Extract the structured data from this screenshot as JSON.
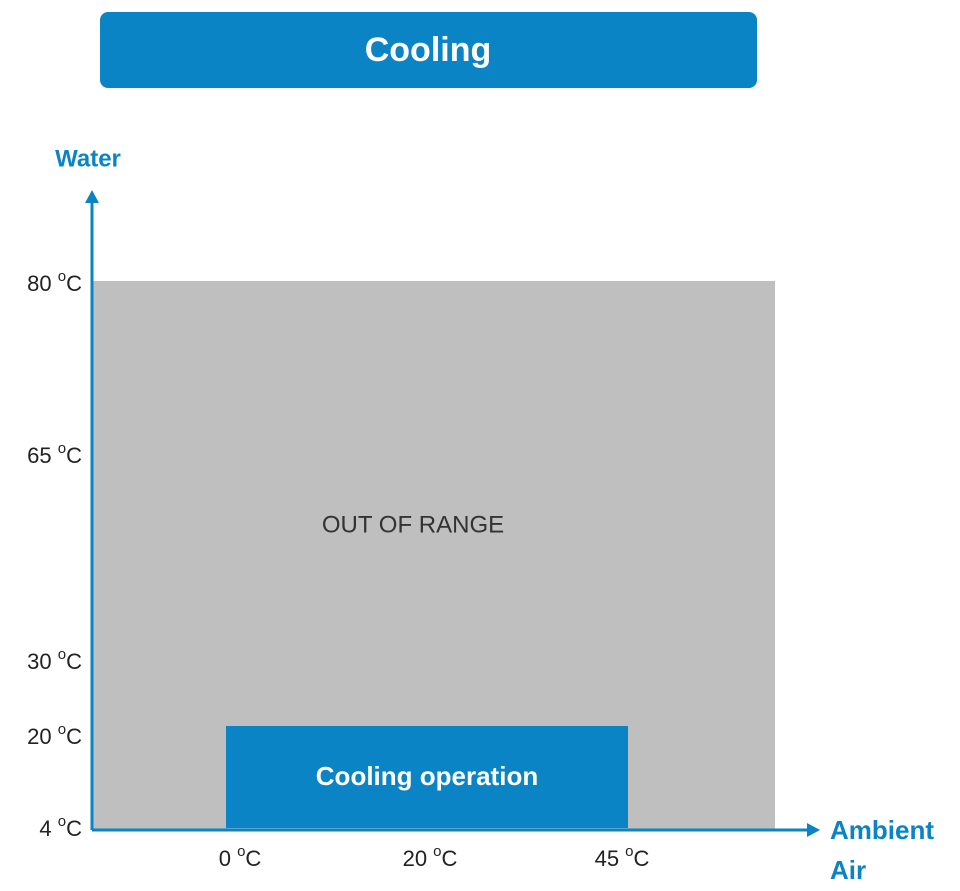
{
  "title": "Cooling",
  "y_axis": {
    "label": "Water",
    "ticks": [
      {
        "num": "80",
        "sup": "o",
        "unit": "C"
      },
      {
        "num": "65",
        "sup": "o",
        "unit": "C"
      },
      {
        "num": "30",
        "sup": "o",
        "unit": "C"
      },
      {
        "num": "20",
        "sup": "o",
        "unit": "C"
      },
      {
        "num": "4",
        "sup": "o",
        "unit": "C"
      }
    ]
  },
  "x_axis": {
    "label": [
      "Ambient",
      "Air"
    ],
    "ticks": [
      {
        "num": "0",
        "sup": "o",
        "unit": "C"
      },
      {
        "num": "20",
        "sup": "o",
        "unit": "C"
      },
      {
        "num": "45",
        "sup": "o",
        "unit": "C"
      }
    ]
  },
  "regions": {
    "out_of_range": "OUT OF RANGE",
    "operation": "Cooling operation"
  }
}
